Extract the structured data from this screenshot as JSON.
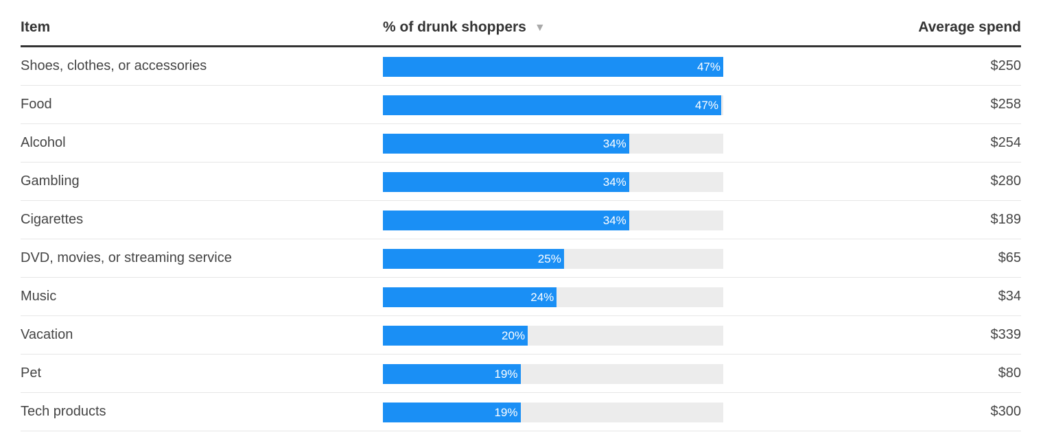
{
  "header": {
    "item": "Item",
    "pct": "% of drunk shoppers",
    "sort_icon": "sort-down-icon",
    "spend": "Average spend"
  },
  "colors": {
    "bar": "#1a8ff5",
    "track": "#ececec",
    "header_rule": "#333333"
  },
  "chart_data": {
    "type": "table",
    "columns": [
      "Item",
      "% of drunk shoppers",
      "Average spend"
    ],
    "sorted_by": "% of drunk shoppers",
    "sort_order": "descending",
    "bar_max_percent": 47,
    "rows": [
      {
        "item": "Shoes, clothes, or accessories",
        "pct": 47,
        "pct_label": "47%",
        "spend": "$250"
      },
      {
        "item": "Food",
        "pct": 47,
        "pct_label": "47%",
        "spend": "$258"
      },
      {
        "item": "Alcohol",
        "pct": 34,
        "pct_label": "34%",
        "spend": "$254"
      },
      {
        "item": "Gambling",
        "pct": 34,
        "pct_label": "34%",
        "spend": "$280"
      },
      {
        "item": "Cigarettes",
        "pct": 34,
        "pct_label": "34%",
        "spend": "$189"
      },
      {
        "item": "DVD, movies, or streaming service",
        "pct": 25,
        "pct_label": "25%",
        "spend": "$65"
      },
      {
        "item": "Music",
        "pct": 24,
        "pct_label": "24%",
        "spend": "$34"
      },
      {
        "item": "Vacation",
        "pct": 20,
        "pct_label": "20%",
        "spend": "$339"
      },
      {
        "item": "Pet",
        "pct": 19,
        "pct_label": "19%",
        "spend": "$80"
      },
      {
        "item": "Tech products",
        "pct": 19,
        "pct_label": "19%",
        "spend": "$300"
      }
    ]
  }
}
